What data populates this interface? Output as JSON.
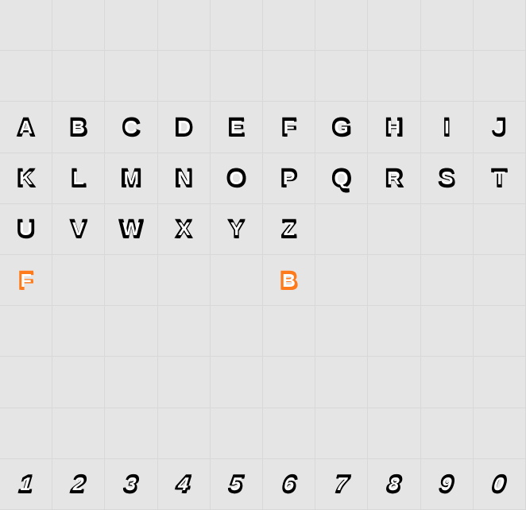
{
  "grid": {
    "columns": 10,
    "rows": 10,
    "background_color": "#e5e5e5",
    "gridline_color": "#d8d8d8",
    "glyph_color_default": "#000000",
    "glyph_color_accent": "#ff7a1a",
    "glyph_interior_color": "#ffffff",
    "glyph_fontsize": 32,
    "glyph_fontweight": 900,
    "cells": [
      {
        "row": 0,
        "col": 0,
        "char": ""
      },
      {
        "row": 0,
        "col": 1,
        "char": ""
      },
      {
        "row": 0,
        "col": 2,
        "char": ""
      },
      {
        "row": 0,
        "col": 3,
        "char": ""
      },
      {
        "row": 0,
        "col": 4,
        "char": ""
      },
      {
        "row": 0,
        "col": 5,
        "char": ""
      },
      {
        "row": 0,
        "col": 6,
        "char": ""
      },
      {
        "row": 0,
        "col": 7,
        "char": ""
      },
      {
        "row": 0,
        "col": 8,
        "char": ""
      },
      {
        "row": 0,
        "col": 9,
        "char": ""
      },
      {
        "row": 1,
        "col": 0,
        "char": ""
      },
      {
        "row": 1,
        "col": 1,
        "char": ""
      },
      {
        "row": 1,
        "col": 2,
        "char": ""
      },
      {
        "row": 1,
        "col": 3,
        "char": ""
      },
      {
        "row": 1,
        "col": 4,
        "char": ""
      },
      {
        "row": 1,
        "col": 5,
        "char": ""
      },
      {
        "row": 1,
        "col": 6,
        "char": ""
      },
      {
        "row": 1,
        "col": 7,
        "char": ""
      },
      {
        "row": 1,
        "col": 8,
        "char": ""
      },
      {
        "row": 1,
        "col": 9,
        "char": ""
      },
      {
        "row": 2,
        "col": 0,
        "char": "A"
      },
      {
        "row": 2,
        "col": 1,
        "char": "B"
      },
      {
        "row": 2,
        "col": 2,
        "char": "C"
      },
      {
        "row": 2,
        "col": 3,
        "char": "D"
      },
      {
        "row": 2,
        "col": 4,
        "char": "E"
      },
      {
        "row": 2,
        "col": 5,
        "char": "F"
      },
      {
        "row": 2,
        "col": 6,
        "char": "G"
      },
      {
        "row": 2,
        "col": 7,
        "char": "H"
      },
      {
        "row": 2,
        "col": 8,
        "char": "I"
      },
      {
        "row": 2,
        "col": 9,
        "char": "J"
      },
      {
        "row": 3,
        "col": 0,
        "char": "K"
      },
      {
        "row": 3,
        "col": 1,
        "char": "L"
      },
      {
        "row": 3,
        "col": 2,
        "char": "M"
      },
      {
        "row": 3,
        "col": 3,
        "char": "N"
      },
      {
        "row": 3,
        "col": 4,
        "char": "O"
      },
      {
        "row": 3,
        "col": 5,
        "char": "P"
      },
      {
        "row": 3,
        "col": 6,
        "char": "Q"
      },
      {
        "row": 3,
        "col": 7,
        "char": "R"
      },
      {
        "row": 3,
        "col": 8,
        "char": "S"
      },
      {
        "row": 3,
        "col": 9,
        "char": "T"
      },
      {
        "row": 4,
        "col": 0,
        "char": "U"
      },
      {
        "row": 4,
        "col": 1,
        "char": "V"
      },
      {
        "row": 4,
        "col": 2,
        "char": "W"
      },
      {
        "row": 4,
        "col": 3,
        "char": "X"
      },
      {
        "row": 4,
        "col": 4,
        "char": "Y"
      },
      {
        "row": 4,
        "col": 5,
        "char": "Z"
      },
      {
        "row": 4,
        "col": 6,
        "char": ""
      },
      {
        "row": 4,
        "col": 7,
        "char": ""
      },
      {
        "row": 4,
        "col": 8,
        "char": ""
      },
      {
        "row": 4,
        "col": 9,
        "char": ""
      },
      {
        "row": 5,
        "col": 0,
        "char": "F",
        "accent": true
      },
      {
        "row": 5,
        "col": 1,
        "char": ""
      },
      {
        "row": 5,
        "col": 2,
        "char": ""
      },
      {
        "row": 5,
        "col": 3,
        "char": ""
      },
      {
        "row": 5,
        "col": 4,
        "char": ""
      },
      {
        "row": 5,
        "col": 5,
        "char": "B",
        "accent": true
      },
      {
        "row": 5,
        "col": 6,
        "char": ""
      },
      {
        "row": 5,
        "col": 7,
        "char": ""
      },
      {
        "row": 5,
        "col": 8,
        "char": ""
      },
      {
        "row": 5,
        "col": 9,
        "char": ""
      },
      {
        "row": 6,
        "col": 0,
        "char": ""
      },
      {
        "row": 6,
        "col": 1,
        "char": ""
      },
      {
        "row": 6,
        "col": 2,
        "char": ""
      },
      {
        "row": 6,
        "col": 3,
        "char": ""
      },
      {
        "row": 6,
        "col": 4,
        "char": ""
      },
      {
        "row": 6,
        "col": 5,
        "char": ""
      },
      {
        "row": 6,
        "col": 6,
        "char": ""
      },
      {
        "row": 6,
        "col": 7,
        "char": ""
      },
      {
        "row": 6,
        "col": 8,
        "char": ""
      },
      {
        "row": 6,
        "col": 9,
        "char": ""
      },
      {
        "row": 7,
        "col": 0,
        "char": ""
      },
      {
        "row": 7,
        "col": 1,
        "char": ""
      },
      {
        "row": 7,
        "col": 2,
        "char": ""
      },
      {
        "row": 7,
        "col": 3,
        "char": ""
      },
      {
        "row": 7,
        "col": 4,
        "char": ""
      },
      {
        "row": 7,
        "col": 5,
        "char": ""
      },
      {
        "row": 7,
        "col": 6,
        "char": ""
      },
      {
        "row": 7,
        "col": 7,
        "char": ""
      },
      {
        "row": 7,
        "col": 8,
        "char": ""
      },
      {
        "row": 7,
        "col": 9,
        "char": ""
      },
      {
        "row": 8,
        "col": 0,
        "char": ""
      },
      {
        "row": 8,
        "col": 1,
        "char": ""
      },
      {
        "row": 8,
        "col": 2,
        "char": ""
      },
      {
        "row": 8,
        "col": 3,
        "char": ""
      },
      {
        "row": 8,
        "col": 4,
        "char": ""
      },
      {
        "row": 8,
        "col": 5,
        "char": ""
      },
      {
        "row": 8,
        "col": 6,
        "char": ""
      },
      {
        "row": 8,
        "col": 7,
        "char": ""
      },
      {
        "row": 8,
        "col": 8,
        "char": ""
      },
      {
        "row": 8,
        "col": 9,
        "char": ""
      },
      {
        "row": 9,
        "col": 0,
        "char": "1",
        "italic": true
      },
      {
        "row": 9,
        "col": 1,
        "char": "2",
        "italic": true
      },
      {
        "row": 9,
        "col": 2,
        "char": "3",
        "italic": true
      },
      {
        "row": 9,
        "col": 3,
        "char": "4",
        "italic": true
      },
      {
        "row": 9,
        "col": 4,
        "char": "5",
        "italic": true
      },
      {
        "row": 9,
        "col": 5,
        "char": "6",
        "italic": true
      },
      {
        "row": 9,
        "col": 6,
        "char": "7",
        "italic": true
      },
      {
        "row": 9,
        "col": 7,
        "char": "8",
        "italic": true
      },
      {
        "row": 9,
        "col": 8,
        "char": "9",
        "italic": true
      },
      {
        "row": 9,
        "col": 9,
        "char": "0",
        "italic": true
      }
    ]
  }
}
